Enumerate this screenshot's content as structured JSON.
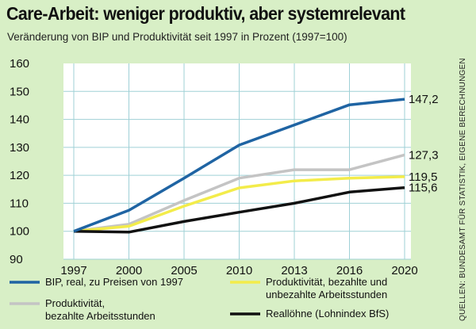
{
  "title": "Care-Arbeit: weniger produktiv, aber systemrelevant",
  "subtitle": "Veränderung von BIP und Produktivität seit 1997 in Prozent (1997=100)",
  "source": "QUELLEN: BUNDESAMT FÜR STATISTIK, EIGENE BERECHNUNGEN",
  "colors": {
    "background": "#d8efc6",
    "plot_background": "#ffffff",
    "grid": "#9fd0d6"
  },
  "chart_data": {
    "type": "line",
    "x": [
      "1997",
      "2000",
      "2005",
      "2010",
      "2013",
      "2016",
      "2020"
    ],
    "ylim": [
      90,
      160
    ],
    "yticks": [
      90,
      100,
      110,
      120,
      130,
      140,
      150,
      160
    ],
    "grid": true,
    "legend_position": "bottom",
    "series": [
      {
        "name": "BIP, real, zu Preisen von 1997",
        "color": "#1f64a3",
        "values": [
          100,
          107.5,
          119,
          130.8,
          138,
          145.2,
          147.2
        ],
        "end_label": "147,2"
      },
      {
        "name": "Produktivität,\nbezahlte Arbeitsstunden",
        "color": "#c4c4c4",
        "values": [
          100,
          102.5,
          111,
          119,
          122,
          122,
          127.3
        ],
        "end_label": "127,3"
      },
      {
        "name": "Produktivität, bezahlte und\nunbezahlte Arbeitsstunden",
        "color": "#f3ec4a",
        "values": [
          100,
          101.8,
          109,
          115.5,
          118,
          119,
          119.5
        ],
        "end_label": "119,5"
      },
      {
        "name": "Reallöhne (Lohnindex BfS)",
        "color": "#111111",
        "values": [
          100,
          99.7,
          103.5,
          106.8,
          110,
          114,
          115.6
        ],
        "end_label": "115,6"
      }
    ]
  }
}
